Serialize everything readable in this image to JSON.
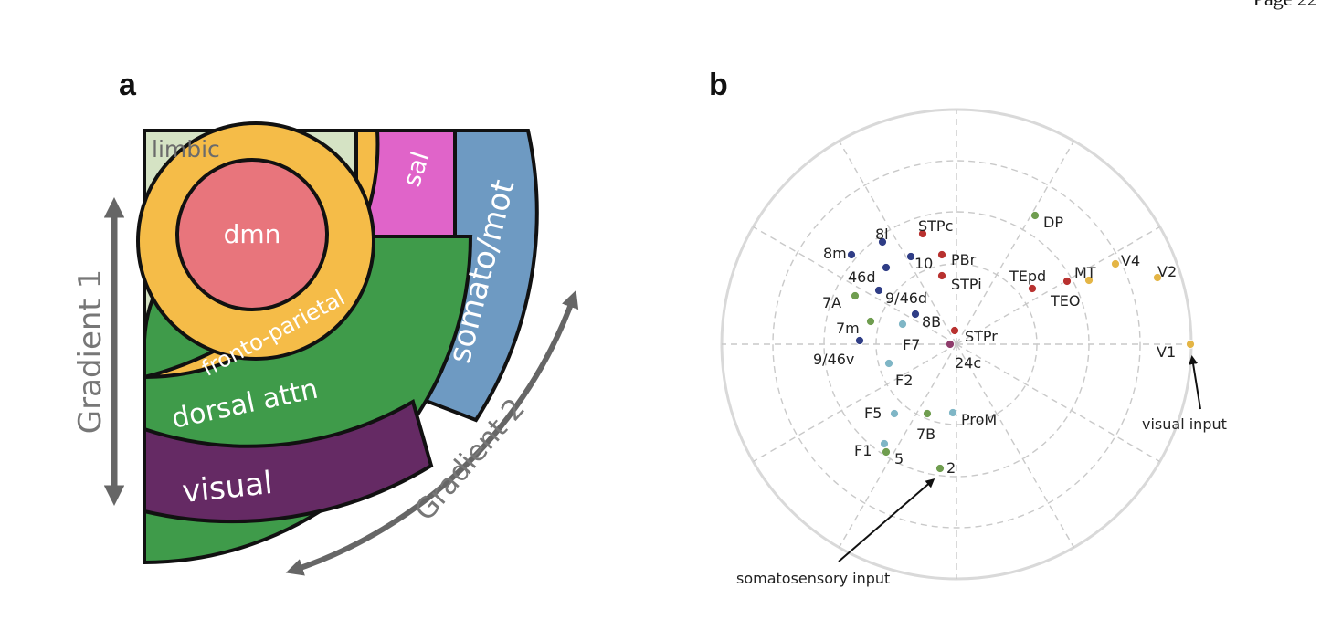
{
  "page_header": "Page 22",
  "panel_a": {
    "letter": "a",
    "networks": {
      "limbic": {
        "label": "limbic",
        "color": "#d5e3c4"
      },
      "dmn": {
        "label": "dmn",
        "color": "#e8757c"
      },
      "fronto_parietal": {
        "label": "fronto-parietal",
        "color": "#f5bc48"
      },
      "sal": {
        "label": "sal",
        "color": "#e064c9"
      },
      "dorsal_attn": {
        "label": "dorsal attn",
        "color": "#3f9b4a"
      },
      "somato_mot": {
        "label": "somato/mot",
        "color": "#6e9ac2"
      },
      "visual": {
        "label": "visual",
        "color": "#652a64"
      }
    },
    "gradient1_label": "Gradient 1",
    "gradient2_label": "Gradient 2",
    "arrow_color": "#666666"
  },
  "panel_b": {
    "letter": "b",
    "area_colors": {
      "frontal": "#2f3d86",
      "temporal": "#b8312f",
      "visual": "#e4b545",
      "parietal": "#6f9d4f",
      "premotor": "#7fb6c6",
      "cingulate": "#8e3b6b"
    },
    "areas": [
      {
        "label": "STPc",
        "group": "temporal"
      },
      {
        "label": "DP",
        "group": "parietal"
      },
      {
        "label": "8l",
        "group": "frontal"
      },
      {
        "label": "8m",
        "group": "frontal"
      },
      {
        "label": "10",
        "group": "frontal"
      },
      {
        "label": "PBr",
        "group": "temporal"
      },
      {
        "label": "46d",
        "group": "frontal"
      },
      {
        "label": "STPi",
        "group": "temporal"
      },
      {
        "label": "9/46d",
        "group": "frontal"
      },
      {
        "label": "7A",
        "group": "parietal"
      },
      {
        "label": "TEpd",
        "group": "temporal"
      },
      {
        "label": "MT",
        "group": "visual"
      },
      {
        "label": "V4",
        "group": "visual"
      },
      {
        "label": "V2",
        "group": "visual"
      },
      {
        "label": "TEO",
        "group": "temporal"
      },
      {
        "label": "8B",
        "group": "frontal"
      },
      {
        "label": "7m",
        "group": "parietal"
      },
      {
        "label": "F7",
        "group": "premotor"
      },
      {
        "label": "STPr",
        "group": "temporal"
      },
      {
        "label": "9/46v",
        "group": "frontal"
      },
      {
        "label": "24c",
        "group": "cingulate"
      },
      {
        "label": "V1",
        "group": "visual"
      },
      {
        "label": "F2",
        "group": "premotor"
      },
      {
        "label": "F5",
        "group": "premotor"
      },
      {
        "label": "7B",
        "group": "parietal"
      },
      {
        "label": "ProM",
        "group": "premotor"
      },
      {
        "label": "F1",
        "group": "premotor"
      },
      {
        "label": "5",
        "group": "parietal"
      },
      {
        "label": "2",
        "group": "parietal"
      }
    ],
    "annotations": {
      "visual_input": "visual input",
      "somatosensory_input": "somatosensory input"
    }
  }
}
